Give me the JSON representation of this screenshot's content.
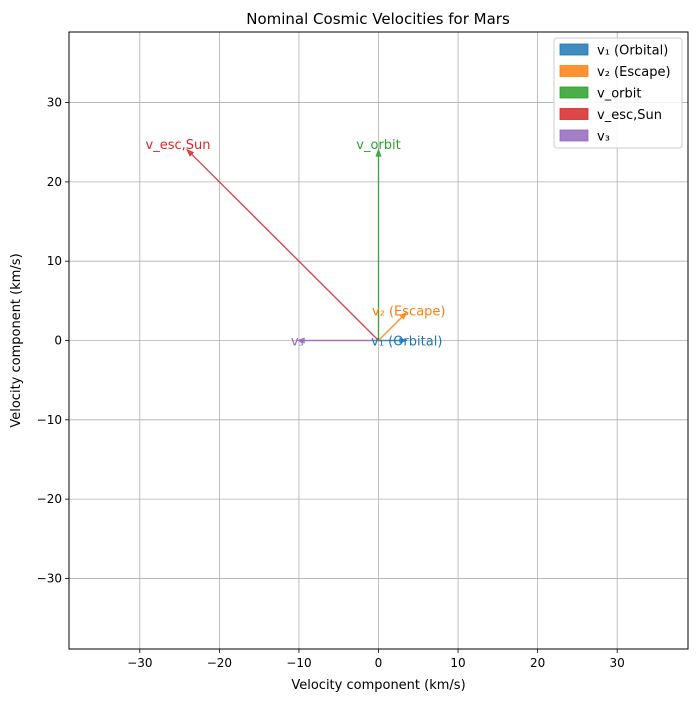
{
  "chart_data": {
    "type": "quiver",
    "title": "Nominal Cosmic Velocities for Mars",
    "xlabel": "Velocity component (km/s)",
    "ylabel": "Velocity component (km/s)",
    "xlim": [
      -38.9,
      38.9
    ],
    "ylim": [
      -38.9,
      38.9
    ],
    "xticks": [
      -30,
      -20,
      -10,
      0,
      10,
      20,
      30
    ],
    "yticks": [
      -30,
      -20,
      -10,
      0,
      10,
      20,
      30
    ],
    "tick_labels": {
      "x": [
        "−30",
        "−20",
        "−10",
        "0",
        "10",
        "20",
        "30"
      ],
      "y": [
        "−30",
        "−20",
        "−10",
        "0",
        "10",
        "20",
        "30"
      ]
    },
    "grid": true,
    "legend_position": "top-right",
    "series": [
      {
        "name": "v₁ (Orbital)",
        "color": "#1f77b4",
        "label": "v₁ (Orbital)",
        "x": 0,
        "y": 0,
        "dx": 3.55,
        "dy": 0,
        "label_x": 3.55,
        "label_y": 0
      },
      {
        "name": "v₂ (Escape)",
        "color": "#ff7f0e",
        "label": "v₂ (Escape)",
        "x": 0,
        "y": 0,
        "dx": 3.55,
        "dy": 3.55,
        "label_x": 3.8,
        "label_y": 3.8
      },
      {
        "name": "v_orbit",
        "color": "#2ca02c",
        "label": "v_orbit",
        "x": 0,
        "y": 0,
        "dx": 0,
        "dy": 24.1,
        "label_x": 0,
        "label_y": 24.8
      },
      {
        "name": "v_esc,Sun",
        "color": "#d62728",
        "label": "v_esc,Sun",
        "x": 0,
        "y": 0,
        "dx": -24.1,
        "dy": 24.1,
        "label_x": -25.2,
        "label_y": 24.8
      },
      {
        "name": "v₃",
        "color": "#9467bd",
        "label": "v₃",
        "x": 0,
        "y": 0,
        "dx": -10.2,
        "dy": 0,
        "label_x": -10.2,
        "label_y": 0
      }
    ]
  }
}
